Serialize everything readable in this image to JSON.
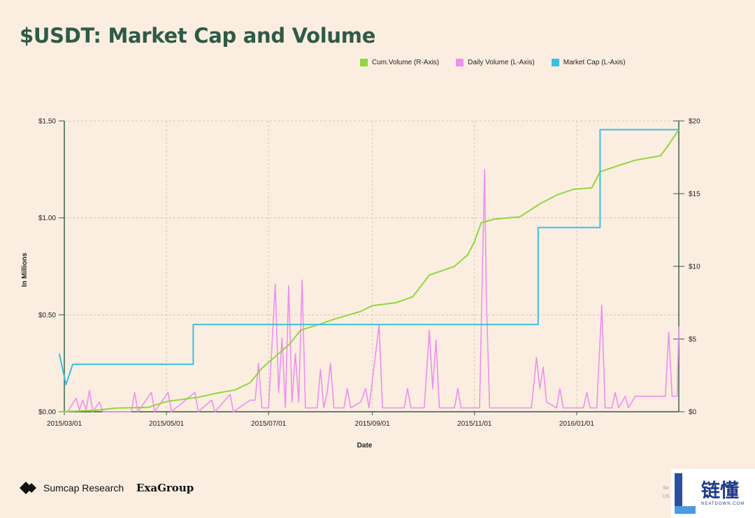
{
  "page": {
    "title": "$USDT: Market Cap and Volume"
  },
  "legend": [
    {
      "label": "Cum.Volume (R-Axis)",
      "color": "#8ed83f"
    },
    {
      "label": "Daily Volume (L-Axis)",
      "color": "#f08ef0"
    },
    {
      "label": "Market Cap (L-Axis)",
      "color": "#3bbfdf"
    }
  ],
  "footer": {
    "brand": "Sumcap Research",
    "partner": "ExaGroup",
    "source_fragment_1": "So",
    "source_fragment_2": "US"
  },
  "watermark": {
    "chinese": "链懂",
    "english": "NEATDOWN.COM"
  },
  "chart_data": {
    "type": "line",
    "xlabel": "Date",
    "ylabel": "In Millions",
    "x_range": [
      "2015-03-01",
      "2016-03-02"
    ],
    "x_ticks": [
      "2015/03/01",
      "2015/05/01",
      "2015/07/01",
      "2015/09/01",
      "2015/11/01",
      "2016/01/01"
    ],
    "y_left": {
      "range": [
        0,
        1.5
      ],
      "ticks": [
        "$0.00",
        "$0.50",
        "$1.00",
        "$1.50"
      ],
      "tick_values": [
        0,
        0.5,
        1.0,
        1.5
      ]
    },
    "y_right": {
      "range": [
        0,
        20
      ],
      "ticks": [
        "$0",
        "$5",
        "$10",
        "$15",
        "$20"
      ],
      "tick_values": [
        0,
        5,
        10,
        15,
        20
      ]
    },
    "grid": true,
    "legend_position": "top-right",
    "series": [
      {
        "name": "Market Cap (L-Axis)",
        "axis": "left",
        "color": "#3bbfdf",
        "style": "step",
        "points": [
          [
            "2015-02-26",
            0.3
          ],
          [
            "2015-03-02",
            0.14
          ],
          [
            "2015-03-06",
            0.245
          ],
          [
            "2015-05-17",
            0.245
          ],
          [
            "2015-05-17",
            0.45
          ],
          [
            "2015-12-09",
            0.45
          ],
          [
            "2015-12-09",
            0.95
          ],
          [
            "2016-01-15",
            0.95
          ],
          [
            "2016-01-15",
            1.455
          ],
          [
            "2016-03-02",
            1.455
          ]
        ]
      },
      {
        "name": "Cum.Volume (R-Axis)",
        "axis": "right",
        "color": "#8ed83f",
        "style": "line",
        "points": [
          [
            "2015-02-26",
            0
          ],
          [
            "2015-03-20",
            0.1
          ],
          [
            "2015-04-01",
            0.25
          ],
          [
            "2015-04-20",
            0.3
          ],
          [
            "2015-05-01",
            0.7
          ],
          [
            "2015-05-20",
            1.0
          ],
          [
            "2015-06-01",
            1.3
          ],
          [
            "2015-06-11",
            1.5
          ],
          [
            "2015-06-20",
            2.0
          ],
          [
            "2015-06-27",
            3.0
          ],
          [
            "2015-07-05",
            3.8
          ],
          [
            "2015-07-14",
            4.7
          ],
          [
            "2015-07-20",
            5.6
          ],
          [
            "2015-07-31",
            6.0
          ],
          [
            "2015-08-10",
            6.4
          ],
          [
            "2015-08-25",
            6.9
          ],
          [
            "2015-09-01",
            7.3
          ],
          [
            "2015-09-15",
            7.5
          ],
          [
            "2015-09-25",
            7.9
          ],
          [
            "2015-10-01",
            8.8
          ],
          [
            "2015-10-05",
            9.4
          ],
          [
            "2015-10-20",
            10.0
          ],
          [
            "2015-10-28",
            10.8
          ],
          [
            "2015-11-01",
            11.7
          ],
          [
            "2015-11-05",
            13.0
          ],
          [
            "2015-11-13",
            13.25
          ],
          [
            "2015-11-28",
            13.4
          ],
          [
            "2015-12-10",
            14.3
          ],
          [
            "2015-12-20",
            14.9
          ],
          [
            "2015-12-30",
            15.3
          ],
          [
            "2016-01-10",
            15.4
          ],
          [
            "2016-01-15",
            16.5
          ],
          [
            "2016-01-25",
            16.9
          ],
          [
            "2016-02-05",
            17.3
          ],
          [
            "2016-02-20",
            17.6
          ],
          [
            "2016-02-24",
            18.2
          ],
          [
            "2016-03-02",
            19.4
          ]
        ]
      },
      {
        "name": "Daily Volume (L-Axis)",
        "axis": "left",
        "color": "#f08ef0",
        "style": "line",
        "points": [
          [
            "2015-02-26",
            0.0
          ],
          [
            "2015-03-03",
            0.0
          ],
          [
            "2015-03-08",
            0.07
          ],
          [
            "2015-03-10",
            0.01
          ],
          [
            "2015-03-12",
            0.06
          ],
          [
            "2015-03-14",
            0.01
          ],
          [
            "2015-03-16",
            0.11
          ],
          [
            "2015-03-18",
            0.0
          ],
          [
            "2015-03-22",
            0.05
          ],
          [
            "2015-03-24",
            0.0
          ],
          [
            "2015-04-10",
            0.0
          ],
          [
            "2015-04-12",
            0.1
          ],
          [
            "2015-04-14",
            0.0
          ],
          [
            "2015-04-22",
            0.1
          ],
          [
            "2015-04-24",
            0.0
          ],
          [
            "2015-05-02",
            0.1
          ],
          [
            "2015-05-04",
            0.0
          ],
          [
            "2015-05-18",
            0.1
          ],
          [
            "2015-05-20",
            0.0
          ],
          [
            "2015-05-28",
            0.06
          ],
          [
            "2015-05-30",
            0.0
          ],
          [
            "2015-06-08",
            0.09
          ],
          [
            "2015-06-10",
            0.0
          ],
          [
            "2015-06-20",
            0.06
          ],
          [
            "2015-06-23",
            0.06
          ],
          [
            "2015-06-25",
            0.25
          ],
          [
            "2015-06-27",
            0.02
          ],
          [
            "2015-07-01",
            0.02
          ],
          [
            "2015-07-03",
            0.34
          ],
          [
            "2015-07-05",
            0.66
          ],
          [
            "2015-07-07",
            0.1
          ],
          [
            "2015-07-09",
            0.38
          ],
          [
            "2015-07-11",
            0.02
          ],
          [
            "2015-07-13",
            0.65
          ],
          [
            "2015-07-15",
            0.05
          ],
          [
            "2015-07-17",
            0.3
          ],
          [
            "2015-07-19",
            0.05
          ],
          [
            "2015-07-21",
            0.68
          ],
          [
            "2015-07-23",
            0.02
          ],
          [
            "2015-07-30",
            0.02
          ],
          [
            "2015-08-01",
            0.22
          ],
          [
            "2015-08-03",
            0.02
          ],
          [
            "2015-08-05",
            0.1
          ],
          [
            "2015-08-07",
            0.25
          ],
          [
            "2015-08-09",
            0.02
          ],
          [
            "2015-08-15",
            0.02
          ],
          [
            "2015-08-17",
            0.12
          ],
          [
            "2015-08-19",
            0.02
          ],
          [
            "2015-08-25",
            0.05
          ],
          [
            "2015-08-28",
            0.12
          ],
          [
            "2015-08-30",
            0.02
          ],
          [
            "2015-09-05",
            0.45
          ],
          [
            "2015-09-07",
            0.02
          ],
          [
            "2015-09-20",
            0.02
          ],
          [
            "2015-09-22",
            0.12
          ],
          [
            "2015-09-24",
            0.02
          ],
          [
            "2015-10-02",
            0.02
          ],
          [
            "2015-10-05",
            0.42
          ],
          [
            "2015-10-07",
            0.12
          ],
          [
            "2015-10-09",
            0.37
          ],
          [
            "2015-10-11",
            0.02
          ],
          [
            "2015-10-20",
            0.02
          ],
          [
            "2015-10-22",
            0.12
          ],
          [
            "2015-10-24",
            0.02
          ],
          [
            "2015-11-04",
            0.02
          ],
          [
            "2015-11-06",
            0.85
          ],
          [
            "2015-11-07",
            1.25
          ],
          [
            "2015-11-08",
            0.6
          ],
          [
            "2015-11-10",
            0.02
          ],
          [
            "2015-11-28",
            0.02
          ],
          [
            "2015-12-05",
            0.02
          ],
          [
            "2015-12-08",
            0.28
          ],
          [
            "2015-12-10",
            0.12
          ],
          [
            "2015-12-12",
            0.23
          ],
          [
            "2015-12-14",
            0.05
          ],
          [
            "2015-12-20",
            0.02
          ],
          [
            "2015-12-22",
            0.12
          ],
          [
            "2015-12-24",
            0.02
          ],
          [
            "2016-01-05",
            0.02
          ],
          [
            "2016-01-07",
            0.1
          ],
          [
            "2016-01-09",
            0.02
          ],
          [
            "2016-01-13",
            0.02
          ],
          [
            "2016-01-16",
            0.55
          ],
          [
            "2016-01-18",
            0.02
          ],
          [
            "2016-01-22",
            0.02
          ],
          [
            "2016-01-24",
            0.1
          ],
          [
            "2016-01-26",
            0.02
          ],
          [
            "2016-01-30",
            0.08
          ],
          [
            "2016-02-01",
            0.02
          ],
          [
            "2016-02-05",
            0.08
          ],
          [
            "2016-02-23",
            0.08
          ],
          [
            "2016-02-25",
            0.41
          ],
          [
            "2016-02-27",
            0.08
          ],
          [
            "2016-03-01",
            0.08
          ],
          [
            "2016-03-02",
            0.44
          ]
        ]
      }
    ]
  }
}
